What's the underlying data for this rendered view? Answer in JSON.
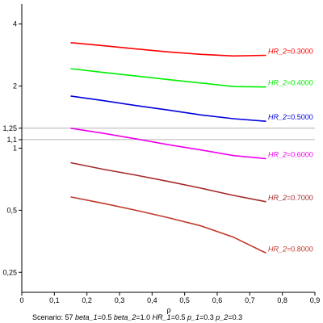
{
  "chart_data": {
    "type": "line",
    "title": "",
    "xlabel": "ρ",
    "ylabel": "",
    "y_scale": "log",
    "xlim": [
      0,
      0.9
    ],
    "ylim": [
      0.2,
      5.0
    ],
    "grid": false,
    "x_ticks": [
      0,
      0.1,
      0.2,
      0.3,
      0.4,
      0.5,
      0.6,
      0.7,
      0.8,
      0.9
    ],
    "x_tick_labels": [
      "0",
      "0,1",
      "0,2",
      "0,3",
      "0,4",
      "0,5",
      "0,6",
      "0,7",
      "0,8",
      "0,9"
    ],
    "y_ticks": [
      0.25,
      0.5,
      1,
      1.1,
      1.25,
      2,
      4
    ],
    "y_tick_labels": [
      "0,25",
      "0,5",
      "1",
      "1,1",
      "1,25",
      "2",
      "4"
    ],
    "reference_lines": [
      1.1,
      1.25
    ],
    "reference_line_color": "#b4b4b4",
    "x": [
      0.15,
      0.25,
      0.35,
      0.45,
      0.55,
      0.65,
      0.75
    ],
    "series": [
      {
        "label_prefix": "HR_2",
        "label_sep": "=",
        "label_value": "0.3000",
        "color": "#ff0000",
        "values": [
          3.25,
          3.14,
          3.03,
          2.93,
          2.85,
          2.8,
          2.82
        ]
      },
      {
        "label_prefix": "HR_2",
        "label_sep": "=",
        "label_value": "0.4000",
        "color": "#00ee00",
        "values": [
          2.43,
          2.33,
          2.24,
          2.15,
          2.07,
          1.99,
          1.98
        ]
      },
      {
        "label_prefix": "HR_2",
        "label_sep": "=",
        "label_value": "0.5000",
        "color": "#0000dd",
        "values": [
          1.79,
          1.7,
          1.61,
          1.53,
          1.45,
          1.39,
          1.35
        ]
      },
      {
        "label_prefix": "HR_2",
        "label_sep": "=",
        "label_value": "0.6000",
        "color": "#ee00ee",
        "values": [
          1.25,
          1.18,
          1.11,
          1.04,
          0.98,
          0.92,
          0.89
        ]
      },
      {
        "label_prefix": "HR_2",
        "label_sep": "=",
        "label_value": "0.7000",
        "color": "#a52a2a",
        "values": [
          0.85,
          0.79,
          0.74,
          0.69,
          0.64,
          0.59,
          0.55
        ]
      },
      {
        "label_prefix": "HR_2",
        "label_sep": "=",
        "label_value": "0.8000",
        "color": "#c0392b",
        "values": [
          0.58,
          0.54,
          0.5,
          0.46,
          0.42,
          0.37,
          0.31
        ]
      }
    ],
    "footer": [
      {
        "name": "scenario",
        "label": "Scenario: ",
        "value": "57",
        "italic": false
      },
      {
        "name": "beta-1",
        "label": "beta_1",
        "value": "=0.5",
        "italic": true
      },
      {
        "name": "beta-2",
        "label": "beta_2",
        "value": "=1.0",
        "italic": true
      },
      {
        "name": "hr-1",
        "label": "HR_1",
        "value": "=0.5",
        "italic": true
      },
      {
        "name": "p-1",
        "label": "p_1",
        "value": "=0.3",
        "italic": true
      },
      {
        "name": "p-2",
        "label": "p_2",
        "value": "=0.3",
        "italic": true
      }
    ]
  }
}
